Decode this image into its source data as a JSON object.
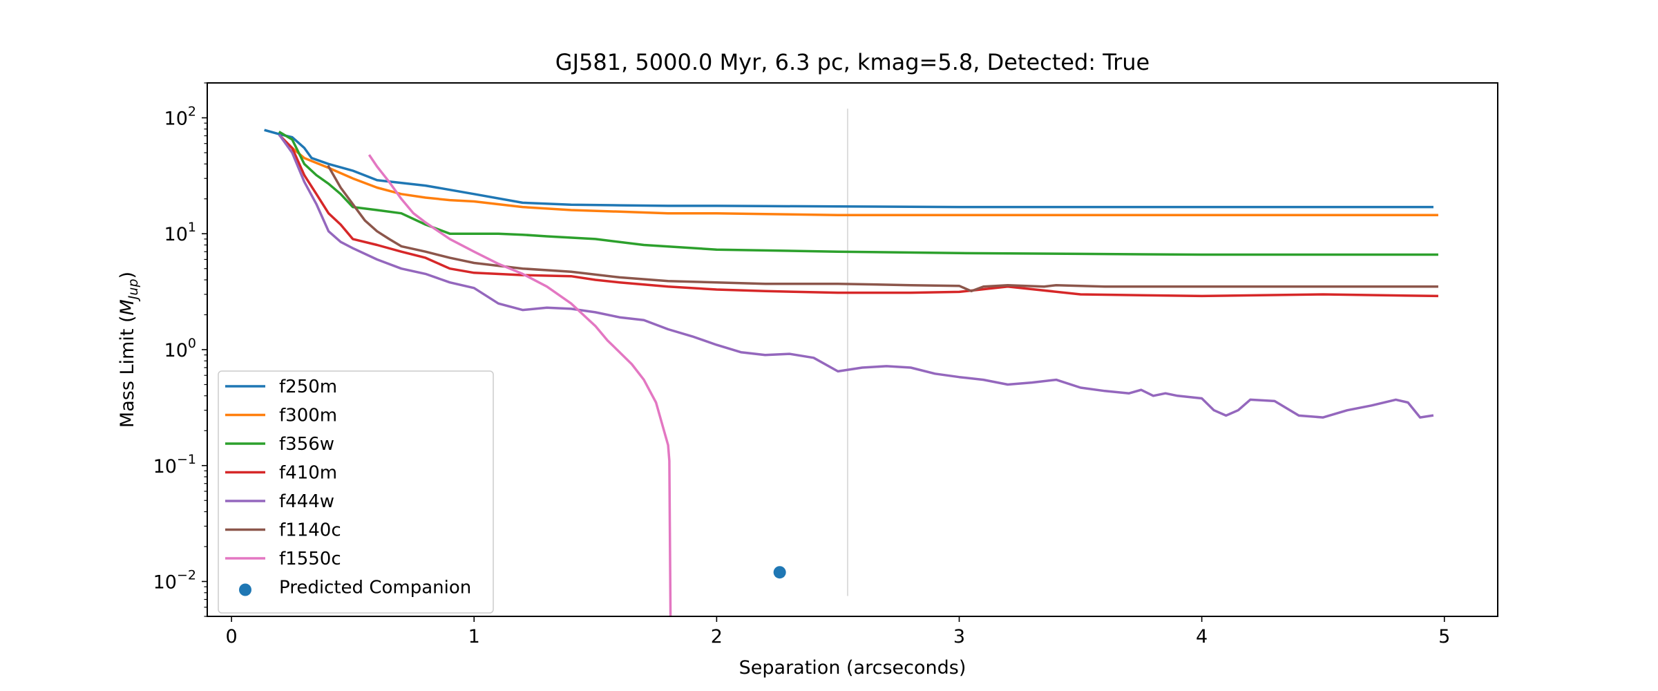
{
  "chart_data": {
    "type": "line",
    "title": "GJ581, 5000.0 Myr, 6.3 pc, kmag=5.8, Detected: True",
    "xlabel": "Separation (arcseconds)",
    "ylabel_prefix": "Mass Limit (",
    "ylabel_symbol": "M",
    "ylabel_subscript": "Jup",
    "ylabel_suffix": ")",
    "xlim": [
      -0.1,
      5.22
    ],
    "ylim": [
      0.005,
      200
    ],
    "yscale": "log",
    "xticks": [
      0,
      1,
      2,
      3,
      4,
      5
    ],
    "xtick_labels": [
      "0",
      "1",
      "2",
      "3",
      "4",
      "5"
    ],
    "yticks": [
      0.01,
      0.1,
      1,
      10,
      100
    ],
    "ytick_bases": [
      "10",
      "10",
      "10",
      "10",
      "10"
    ],
    "ytick_exponents": [
      "−2",
      "−1",
      "0",
      "1",
      "2"
    ],
    "legend_position": "lower-left",
    "vline": {
      "x": 2.54,
      "ymin": 0.0075,
      "ymax": 120,
      "color": "#dddddd"
    },
    "series": [
      {
        "name": "f250m",
        "color": "#1f77b4",
        "x": [
          0.14,
          0.2,
          0.25,
          0.3,
          0.33,
          0.4,
          0.5,
          0.6,
          0.8,
          1.0,
          1.2,
          1.4,
          1.6,
          1.8,
          2.0,
          2.2,
          2.5,
          3.0,
          3.5,
          4.0,
          4.5,
          4.95
        ],
        "y": [
          78,
          72,
          68,
          55,
          45,
          40,
          35,
          29,
          26,
          22,
          18.5,
          17.8,
          17.6,
          17.4,
          17.4,
          17.3,
          17.2,
          17.0,
          17.0,
          17.0,
          17.0,
          17.0
        ]
      },
      {
        "name": "f300m",
        "color": "#ff7f0e",
        "x": [
          0.25,
          0.3,
          0.4,
          0.5,
          0.6,
          0.7,
          0.8,
          0.9,
          1.0,
          1.2,
          1.4,
          1.6,
          1.8,
          2.0,
          2.2,
          2.5,
          3.0,
          3.5,
          4.0,
          4.5,
          4.97
        ],
        "y": [
          55,
          45,
          37,
          30,
          25,
          22,
          20.5,
          19.5,
          19,
          17,
          16,
          15.5,
          15,
          15,
          14.8,
          14.5,
          14.5,
          14.5,
          14.5,
          14.5,
          14.5
        ]
      },
      {
        "name": "f356w",
        "color": "#2ca02c",
        "x": [
          0.2,
          0.25,
          0.3,
          0.35,
          0.4,
          0.45,
          0.5,
          0.6,
          0.7,
          0.8,
          0.9,
          1.0,
          1.1,
          1.2,
          1.3,
          1.5,
          1.7,
          2.0,
          2.5,
          3.0,
          3.5,
          4.0,
          4.5,
          4.97
        ],
        "y": [
          75,
          65,
          40,
          32,
          27,
          22,
          17,
          16,
          15,
          12,
          10,
          10,
          10,
          9.8,
          9.5,
          9,
          8,
          7.3,
          7,
          6.8,
          6.7,
          6.6,
          6.6,
          6.6
        ]
      },
      {
        "name": "f410m",
        "color": "#d62728",
        "x": [
          0.2,
          0.25,
          0.3,
          0.35,
          0.4,
          0.45,
          0.5,
          0.6,
          0.7,
          0.8,
          0.9,
          1.0,
          1.2,
          1.4,
          1.5,
          1.6,
          1.8,
          2.0,
          2.2,
          2.5,
          2.8,
          3.0,
          3.2,
          3.5,
          4.0,
          4.5,
          4.97
        ],
        "y": [
          70,
          55,
          32,
          22,
          15,
          12,
          9,
          8,
          7,
          6.2,
          5,
          4.6,
          4.4,
          4.3,
          4,
          3.8,
          3.5,
          3.3,
          3.2,
          3.1,
          3.1,
          3.15,
          3.5,
          3.0,
          2.9,
          3.0,
          2.9
        ]
      },
      {
        "name": "f444w",
        "color": "#9467bd",
        "x": [
          0.2,
          0.25,
          0.3,
          0.35,
          0.4,
          0.45,
          0.5,
          0.6,
          0.7,
          0.8,
          0.9,
          1.0,
          1.1,
          1.2,
          1.3,
          1.4,
          1.5,
          1.6,
          1.7,
          1.8,
          1.9,
          2.0,
          2.1,
          2.2,
          2.3,
          2.4,
          2.5,
          2.6,
          2.7,
          2.8,
          2.9,
          3.0,
          3.1,
          3.2,
          3.3,
          3.4,
          3.5,
          3.6,
          3.7,
          3.75,
          3.8,
          3.85,
          3.9,
          4.0,
          4.05,
          4.1,
          4.15,
          4.2,
          4.3,
          4.4,
          4.5,
          4.6,
          4.7,
          4.8,
          4.85,
          4.9,
          4.95
        ],
        "y": [
          70,
          50,
          28,
          18,
          10.5,
          8.5,
          7.5,
          6,
          5,
          4.5,
          3.8,
          3.4,
          2.5,
          2.2,
          2.3,
          2.25,
          2.1,
          1.9,
          1.8,
          1.5,
          1.3,
          1.1,
          0.95,
          0.9,
          0.92,
          0.85,
          0.65,
          0.7,
          0.72,
          0.7,
          0.62,
          0.58,
          0.55,
          0.5,
          0.52,
          0.55,
          0.47,
          0.44,
          0.42,
          0.45,
          0.4,
          0.42,
          0.4,
          0.38,
          0.3,
          0.27,
          0.3,
          0.37,
          0.36,
          0.27,
          0.26,
          0.3,
          0.33,
          0.37,
          0.35,
          0.26,
          0.27
        ]
      },
      {
        "name": "f1140c",
        "color": "#8c564b",
        "x": [
          0.4,
          0.45,
          0.5,
          0.55,
          0.6,
          0.65,
          0.7,
          0.8,
          0.9,
          1.0,
          1.2,
          1.4,
          1.6,
          1.8,
          2.0,
          2.2,
          2.5,
          2.8,
          3.0,
          3.05,
          3.1,
          3.2,
          3.35,
          3.4,
          3.6,
          4.0,
          4.5,
          4.97
        ],
        "y": [
          38,
          25,
          18,
          13,
          10.5,
          9,
          7.8,
          7,
          6.2,
          5.6,
          5,
          4.7,
          4.2,
          3.9,
          3.8,
          3.7,
          3.7,
          3.6,
          3.55,
          3.2,
          3.5,
          3.6,
          3.5,
          3.6,
          3.5,
          3.5,
          3.5,
          3.5
        ]
      },
      {
        "name": "f1550c",
        "color": "#e377c2",
        "x": [
          0.57,
          0.6,
          0.65,
          0.7,
          0.75,
          0.8,
          0.9,
          1.0,
          1.1,
          1.2,
          1.3,
          1.4,
          1.45,
          1.5,
          1.55,
          1.6,
          1.65,
          1.7,
          1.75,
          1.8,
          1.805,
          1.81
        ],
        "y": [
          47,
          38,
          28,
          20,
          15,
          12.5,
          9,
          7,
          5.5,
          4.5,
          3.5,
          2.5,
          2.0,
          1.6,
          1.2,
          0.95,
          0.75,
          0.55,
          0.35,
          0.15,
          0.11,
          0.004
        ]
      }
    ],
    "scatter": [
      {
        "name": "Predicted Companion",
        "color": "#1f77b4",
        "x": [
          2.26
        ],
        "y": [
          0.012
        ]
      }
    ]
  }
}
